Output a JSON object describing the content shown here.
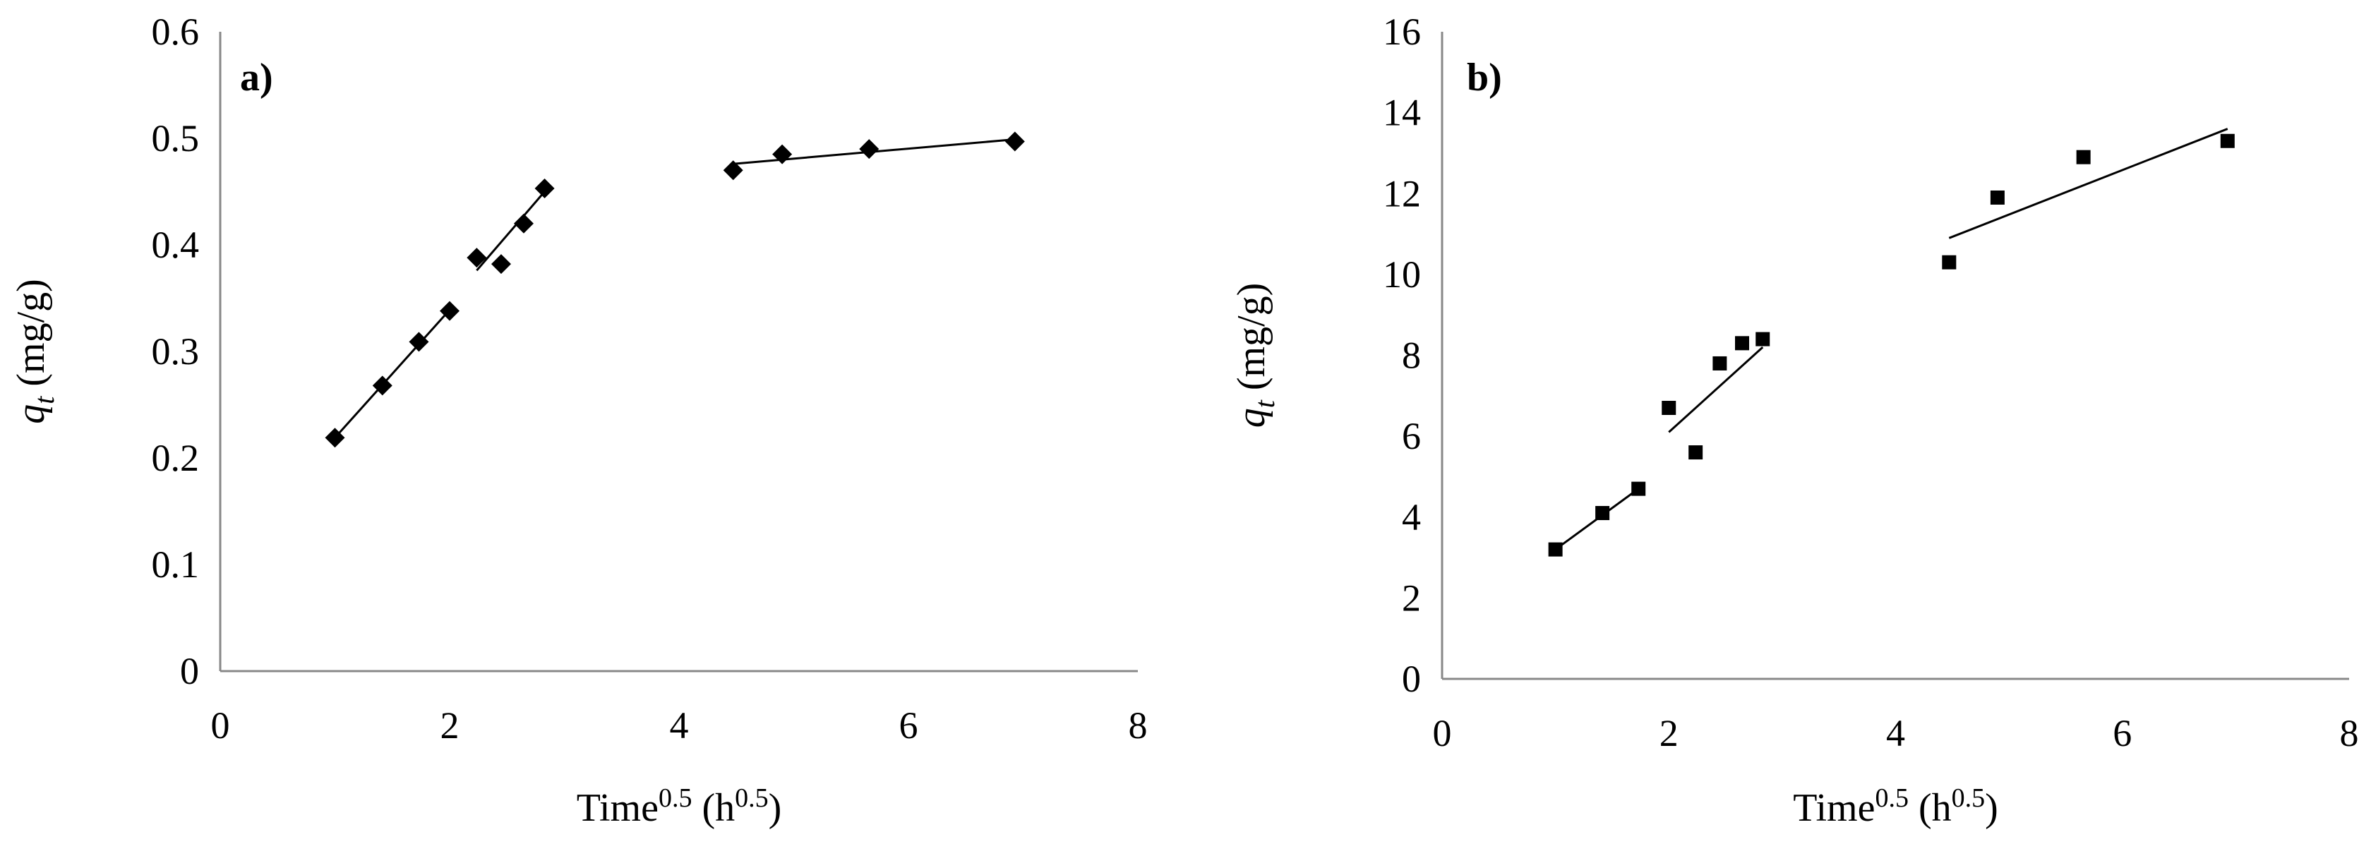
{
  "charts": [
    {
      "panel_label": "a)",
      "xlabel": {
        "base": "Time",
        "sup1": "0.5",
        "mid": " (h",
        "sup2": "0.5",
        "end": ")"
      },
      "ylabel": {
        "var": "q",
        "sub": "t",
        "unit": " (mg/g)"
      },
      "x_ticks": [
        "0",
        "2",
        "4",
        "6",
        "8"
      ],
      "y_ticks": [
        "0",
        "0.1",
        "0.2",
        "0.3",
        "0.4",
        "0.5",
        "0.6"
      ],
      "marker": "diamond",
      "marker_color": "#000000"
    },
    {
      "panel_label": "b)",
      "xlabel": {
        "base": "Time",
        "sup1": "0.5",
        "mid": " (h",
        "sup2": "0.5",
        "end": ")"
      },
      "ylabel": {
        "var": "q",
        "sub": "t",
        "unit": " (mg/g)"
      },
      "x_ticks": [
        "0",
        "2",
        "4",
        "6",
        "8"
      ],
      "y_ticks": [
        "0",
        "2",
        "4",
        "6",
        "8",
        "10",
        "12",
        "14",
        "16"
      ],
      "marker": "square",
      "marker_color": "#000000"
    }
  ],
  "chart_data": [
    {
      "type": "scatter",
      "title": "",
      "xlim": [
        0,
        8
      ],
      "ylim": [
        0,
        0.6
      ],
      "grid": false,
      "points": [
        {
          "x": 1.0,
          "y": 0.219
        },
        {
          "x": 1.414,
          "y": 0.268
        },
        {
          "x": 1.732,
          "y": 0.309
        },
        {
          "x": 2.0,
          "y": 0.338
        },
        {
          "x": 2.236,
          "y": 0.388
        },
        {
          "x": 2.449,
          "y": 0.382
        },
        {
          "x": 2.646,
          "y": 0.42
        },
        {
          "x": 2.828,
          "y": 0.453
        },
        {
          "x": 4.472,
          "y": 0.47
        },
        {
          "x": 4.899,
          "y": 0.485
        },
        {
          "x": 5.657,
          "y": 0.49
        },
        {
          "x": 6.928,
          "y": 0.497
        }
      ],
      "trendlines": [
        {
          "x": [
            1.0,
            2.0
          ],
          "y": [
            0.219,
            0.339
          ]
        },
        {
          "x": [
            2.236,
            2.828
          ],
          "y": [
            0.376,
            0.45
          ]
        },
        {
          "x": [
            4.472,
            6.928
          ],
          "y": [
            0.476,
            0.499
          ]
        }
      ]
    },
    {
      "type": "scatter",
      "title": "",
      "xlim": [
        0,
        8
      ],
      "ylim": [
        0,
        16
      ],
      "grid": false,
      "points": [
        {
          "x": 1.0,
          "y": 3.2
        },
        {
          "x": 1.414,
          "y": 4.1
        },
        {
          "x": 1.732,
          "y": 4.7
        },
        {
          "x": 2.0,
          "y": 6.7
        },
        {
          "x": 2.236,
          "y": 5.6
        },
        {
          "x": 2.449,
          "y": 7.8
        },
        {
          "x": 2.646,
          "y": 8.3
        },
        {
          "x": 2.828,
          "y": 8.4
        },
        {
          "x": 4.472,
          "y": 10.3
        },
        {
          "x": 4.899,
          "y": 11.9
        },
        {
          "x": 5.657,
          "y": 12.9
        },
        {
          "x": 6.928,
          "y": 13.3
        }
      ],
      "trendlines": [
        {
          "x": [
            1.0,
            1.732
          ],
          "y": [
            3.2,
            4.7
          ]
        },
        {
          "x": [
            2.0,
            2.828
          ],
          "y": [
            6.1,
            8.2
          ]
        },
        {
          "x": [
            4.472,
            6.928
          ],
          "y": [
            10.9,
            13.6
          ]
        }
      ]
    }
  ]
}
